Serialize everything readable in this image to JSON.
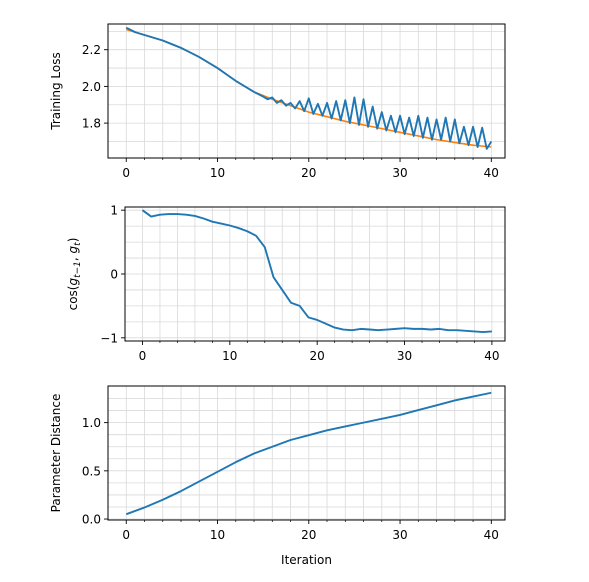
{
  "chart_data": [
    {
      "type": "line",
      "ylabel": "Training Loss",
      "xlabel": "",
      "xlim": [
        -2,
        41.5
      ],
      "ylim": [
        1.61,
        2.34
      ],
      "xticks": [
        0,
        10,
        20,
        30,
        40
      ],
      "yticks": [
        1.8,
        2.0,
        2.2
      ],
      "xtick_labels": [
        "0",
        "10",
        "20",
        "30",
        "40"
      ],
      "ytick_labels": [
        "1.8",
        "2.0",
        "2.2"
      ],
      "grid": true,
      "series": [
        {
          "color": "#ff7f0e",
          "x": [
            0,
            2,
            4,
            6,
            8,
            10,
            12,
            14,
            16,
            18,
            20,
            22,
            24,
            26,
            28,
            30,
            32,
            34,
            36,
            38,
            40
          ],
          "y": [
            2.31,
            2.28,
            2.25,
            2.21,
            2.16,
            2.1,
            2.03,
            1.97,
            1.93,
            1.895,
            1.86,
            1.835,
            1.81,
            1.79,
            1.77,
            1.75,
            1.73,
            1.71,
            1.695,
            1.68,
            1.67
          ]
        },
        {
          "color": "#1f77b4",
          "x": [
            0,
            1,
            2,
            3,
            4,
            5,
            6,
            7,
            8,
            9,
            10,
            11,
            12,
            13,
            14,
            15,
            15.5,
            16,
            16.5,
            17,
            17.5,
            18,
            18.5,
            19,
            19.5,
            20,
            20.5,
            21,
            21.5,
            22,
            22.5,
            23,
            23.5,
            24,
            24.5,
            25,
            25.5,
            26,
            26.5,
            27,
            27.5,
            28,
            28.5,
            29,
            29.5,
            30,
            30.5,
            31,
            31.5,
            32,
            32.5,
            33,
            33.5,
            34,
            34.5,
            35,
            35.5,
            36,
            36.5,
            37,
            37.5,
            38,
            38.5,
            39,
            39.5,
            40
          ],
          "y": [
            2.32,
            2.295,
            2.28,
            2.265,
            2.25,
            2.23,
            2.21,
            2.185,
            2.16,
            2.13,
            2.1,
            2.065,
            2.03,
            2.0,
            1.97,
            1.945,
            1.93,
            1.94,
            1.91,
            1.925,
            1.895,
            1.91,
            1.88,
            1.92,
            1.865,
            1.935,
            1.85,
            1.905,
            1.84,
            1.91,
            1.825,
            1.92,
            1.815,
            1.925,
            1.8,
            1.94,
            1.79,
            1.93,
            1.78,
            1.89,
            1.77,
            1.86,
            1.76,
            1.84,
            1.75,
            1.84,
            1.74,
            1.83,
            1.73,
            1.84,
            1.72,
            1.83,
            1.71,
            1.82,
            1.71,
            1.83,
            1.7,
            1.82,
            1.69,
            1.78,
            1.68,
            1.78,
            1.67,
            1.775,
            1.66,
            1.7
          ]
        }
      ]
    },
    {
      "type": "line",
      "ylabel": "cos(g_{t-1}, g_t)",
      "xlabel": "",
      "xlim": [
        -2,
        41.5
      ],
      "ylim": [
        -1.05,
        1.05
      ],
      "xticks": [
        0,
        10,
        20,
        30,
        40
      ],
      "yticks": [
        -1,
        0,
        1
      ],
      "xtick_labels": [
        "0",
        "10",
        "20",
        "30",
        "40"
      ],
      "ytick_labels": [
        "−1",
        "0",
        "1"
      ],
      "grid": true,
      "series": [
        {
          "color": "#1f77b4",
          "x": [
            0,
            1,
            2,
            3,
            4,
            5,
            6,
            7,
            8,
            9,
            10,
            11,
            12,
            13,
            14,
            15,
            16,
            17,
            18,
            19,
            20,
            21,
            22,
            23,
            24,
            25,
            26,
            27,
            28,
            29,
            30,
            31,
            32,
            33,
            34,
            35,
            36,
            37,
            38,
            39,
            40
          ],
          "y": [
            1.0,
            0.9,
            0.93,
            0.94,
            0.94,
            0.93,
            0.91,
            0.87,
            0.82,
            0.79,
            0.76,
            0.72,
            0.67,
            0.6,
            0.42,
            -0.05,
            -0.25,
            -0.45,
            -0.5,
            -0.68,
            -0.72,
            -0.78,
            -0.84,
            -0.87,
            -0.88,
            -0.86,
            -0.87,
            -0.88,
            -0.87,
            -0.86,
            -0.85,
            -0.86,
            -0.86,
            -0.87,
            -0.86,
            -0.88,
            -0.88,
            -0.89,
            -0.9,
            -0.91,
            -0.9
          ]
        }
      ]
    },
    {
      "type": "line",
      "ylabel": "Parameter Distance",
      "xlabel": "Iteration",
      "xlim": [
        -2,
        41.5
      ],
      "ylim": [
        -0.01,
        1.38
      ],
      "xticks": [
        0,
        10,
        20,
        30,
        40
      ],
      "yticks": [
        0.0,
        0.5,
        1.0
      ],
      "xtick_labels": [
        "0",
        "10",
        "20",
        "30",
        "40"
      ],
      "ytick_labels": [
        "0.0",
        "0.5",
        "1.0"
      ],
      "grid": true,
      "series": [
        {
          "color": "#1f77b4",
          "x": [
            0,
            2,
            4,
            6,
            8,
            10,
            12,
            14,
            16,
            18,
            20,
            22,
            24,
            26,
            28,
            30,
            32,
            34,
            36,
            38,
            40
          ],
          "y": [
            0.05,
            0.12,
            0.2,
            0.29,
            0.39,
            0.49,
            0.59,
            0.68,
            0.75,
            0.82,
            0.87,
            0.92,
            0.96,
            1.0,
            1.04,
            1.08,
            1.13,
            1.18,
            1.23,
            1.27,
            1.31
          ]
        }
      ]
    }
  ]
}
